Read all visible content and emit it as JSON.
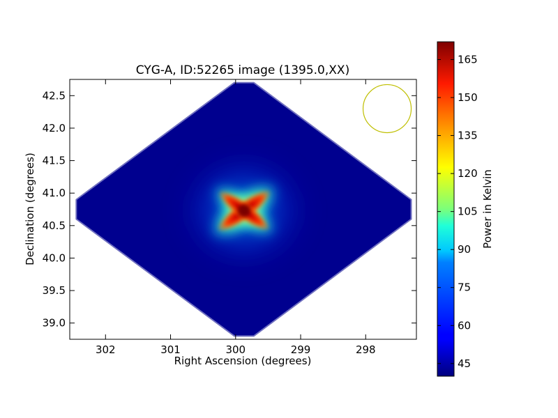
{
  "chart_data": {
    "type": "heatmap",
    "title": "CYG-A, ID:52265 image (1395.0,XX)",
    "xlabel": "Right Ascension (degrees)",
    "ylabel": "Declination (degrees)",
    "xlim": [
      302.55,
      297.22
    ],
    "ylim": [
      38.75,
      42.75
    ],
    "x_inverted": true,
    "x_ticks": [
      302,
      301,
      300,
      299,
      298
    ],
    "x_tick_labels": [
      "302",
      "301",
      "300",
      "299",
      "298"
    ],
    "y_ticks": [
      39.0,
      39.5,
      40.0,
      40.5,
      41.0,
      41.5,
      42.0,
      42.5
    ],
    "y_tick_labels": [
      "39.0",
      "39.5",
      "40.0",
      "40.5",
      "41.0",
      "41.5",
      "42.0",
      "42.5"
    ],
    "colormap": "jet",
    "colorbar": {
      "label": "Power in Kelvin",
      "range": [
        40,
        172
      ],
      "ticks": [
        45,
        60,
        75,
        90,
        105,
        120,
        135,
        150,
        165
      ],
      "tick_labels": [
        "45",
        "60",
        "75",
        "90",
        "105",
        "120",
        "135",
        "150",
        "165"
      ]
    },
    "source": {
      "ra": 299.87,
      "dec": 40.73,
      "peak": 172
    },
    "footprint": {
      "shape": "diamond",
      "center": {
        "ra": 299.87,
        "dec": 40.75
      },
      "ra_range": [
        297.3,
        302.45
      ],
      "dec_range": [
        38.8,
        42.7
      ]
    },
    "beam": {
      "ra": 297.67,
      "dec": 42.3,
      "radius_dec": 0.37,
      "color": "#bfbf00"
    }
  }
}
